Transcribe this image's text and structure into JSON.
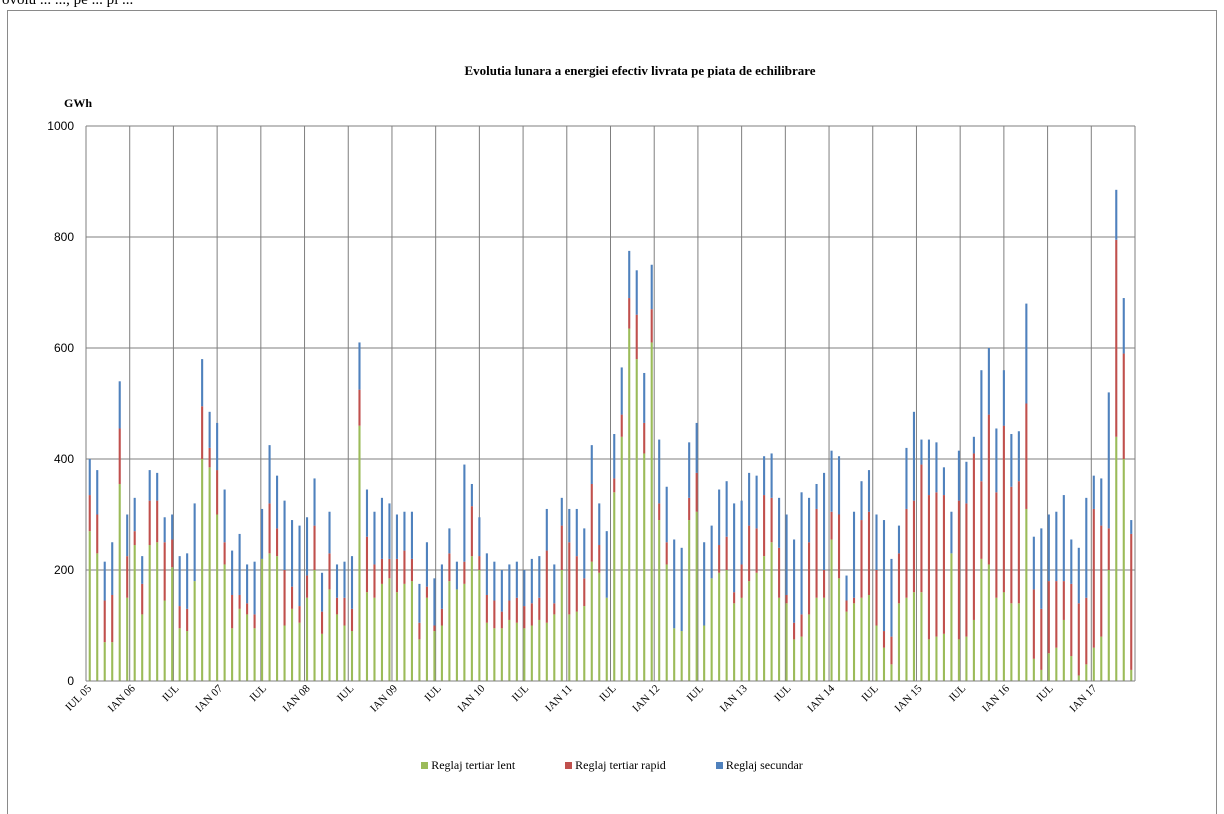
{
  "header": {
    "clipped_text": "ovolu ... ..., pe ... pi ..."
  },
  "chart_data": {
    "type": "bar",
    "stacked": true,
    "title": "Evolutia lunara a energiei efectiv livrata pe piata de echilibrare",
    "ylabel": "GWh",
    "ylim": [
      0,
      1000
    ],
    "yticks": [
      0,
      200,
      400,
      600,
      800,
      1000
    ],
    "grid": true,
    "legend_position": "bottom",
    "x_tick_labels": [
      "IUL 05",
      "IAN 06",
      "IUL",
      "IAN 07",
      "IUL",
      "IAN 08",
      "IUL",
      "IAN 09",
      "IUL",
      "IAN 10",
      "IUL",
      "IAN 11",
      "IUL",
      "IAN 12",
      "IUL",
      "IAN 13",
      "IUL",
      "IAN 14",
      "IUL",
      "IAN 15",
      "IUL",
      "IAN 16",
      "IUL",
      "IAN 17"
    ],
    "colors": {
      "lent": "#9bbb59",
      "rapid": "#c0504d",
      "secundar": "#4f81bd",
      "grid": "#7f7f7f"
    },
    "series": [
      {
        "name": "Reglaj tertiar lent",
        "values": [
          270,
          230,
          70,
          70,
          355,
          150,
          245,
          120,
          245,
          250,
          145,
          205,
          95,
          90,
          180,
          400,
          385,
          300,
          210,
          95,
          130,
          120,
          95,
          220,
          230,
          225,
          100,
          130,
          105,
          150,
          200,
          85,
          165,
          120,
          100,
          90,
          460,
          160,
          150,
          175,
          185,
          160,
          175,
          180,
          75,
          150,
          90,
          100,
          180,
          165,
          175,
          225,
          200,
          105,
          95,
          95,
          110,
          105,
          95,
          100,
          110,
          105,
          120,
          200,
          120,
          125,
          135,
          215,
          195,
          150,
          340,
          440,
          635,
          580,
          410,
          610,
          290,
          210,
          95,
          90,
          290,
          305,
          100,
          185,
          195,
          200,
          140,
          150,
          180,
          195,
          225,
          250,
          150,
          140,
          75,
          80,
          120,
          150,
          150,
          255,
          185,
          125,
          140,
          150,
          155,
          100,
          60,
          30,
          140,
          150,
          160,
          160,
          75,
          80,
          85,
          230,
          75,
          80,
          110,
          220,
          210,
          150,
          160,
          140,
          140,
          310,
          40,
          20,
          50,
          60,
          110,
          45,
          10,
          30,
          60,
          80,
          200,
          440,
          400,
          20
        ]
      },
      {
        "name": "Reglaj tertiar rapid",
        "values": [
          65,
          70,
          75,
          85,
          100,
          75,
          25,
          55,
          80,
          75,
          105,
          50,
          40,
          40,
          0,
          95,
          35,
          80,
          40,
          60,
          25,
          20,
          25,
          0,
          90,
          50,
          100,
          40,
          30,
          40,
          80,
          40,
          65,
          30,
          50,
          40,
          65,
          100,
          60,
          45,
          35,
          60,
          60,
          40,
          30,
          20,
          10,
          30,
          50,
          0,
          40,
          90,
          25,
          50,
          50,
          30,
          35,
          45,
          40,
          40,
          40,
          130,
          20,
          80,
          130,
          100,
          50,
          140,
          50,
          0,
          25,
          40,
          55,
          80,
          55,
          60,
          30,
          40,
          0,
          0,
          40,
          70,
          0,
          0,
          50,
          60,
          20,
          60,
          100,
          80,
          110,
          80,
          90,
          15,
          30,
          40,
          130,
          160,
          50,
          50,
          115,
          20,
          10,
          140,
          150,
          100,
          30,
          50,
          90,
          160,
          165,
          230,
          260,
          260,
          250,
          0,
          250,
          240,
          300,
          140,
          270,
          190,
          300,
          210,
          220,
          190,
          125,
          110,
          130,
          120,
          70,
          130,
          130,
          120,
          250,
          200,
          75,
          355,
          190,
          245
        ]
      },
      {
        "name": "Reglaj secundar",
        "values": [
          65,
          80,
          70,
          95,
          85,
          75,
          60,
          50,
          55,
          50,
          45,
          45,
          90,
          100,
          140,
          85,
          65,
          85,
          95,
          80,
          110,
          70,
          95,
          90,
          105,
          95,
          125,
          120,
          145,
          105,
          85,
          70,
          75,
          60,
          65,
          95,
          85,
          85,
          95,
          110,
          100,
          80,
          70,
          85,
          70,
          80,
          85,
          80,
          45,
          50,
          175,
          40,
          70,
          75,
          70,
          75,
          65,
          65,
          65,
          80,
          75,
          75,
          70,
          50,
          60,
          85,
          90,
          70,
          75,
          120,
          80,
          85,
          85,
          80,
          90,
          80,
          115,
          100,
          160,
          150,
          100,
          90,
          150,
          95,
          100,
          100,
          160,
          115,
          95,
          95,
          70,
          80,
          90,
          145,
          150,
          220,
          80,
          45,
          175,
          110,
          105,
          45,
          155,
          70,
          75,
          100,
          200,
          140,
          50,
          110,
          160,
          45,
          100,
          90,
          50,
          75,
          90,
          75,
          30,
          200,
          120,
          115,
          100,
          95,
          90,
          180,
          95,
          145,
          120,
          125,
          155,
          80,
          100,
          180,
          60,
          85,
          245,
          90,
          100,
          25
        ]
      }
    ]
  },
  "legend": {
    "items": [
      {
        "label": "Reglaj tertiar lent",
        "color": "#9bbb59"
      },
      {
        "label": "Reglaj tertiar rapid",
        "color": "#c0504d"
      },
      {
        "label": "Reglaj secundar",
        "color": "#4f81bd"
      }
    ]
  }
}
